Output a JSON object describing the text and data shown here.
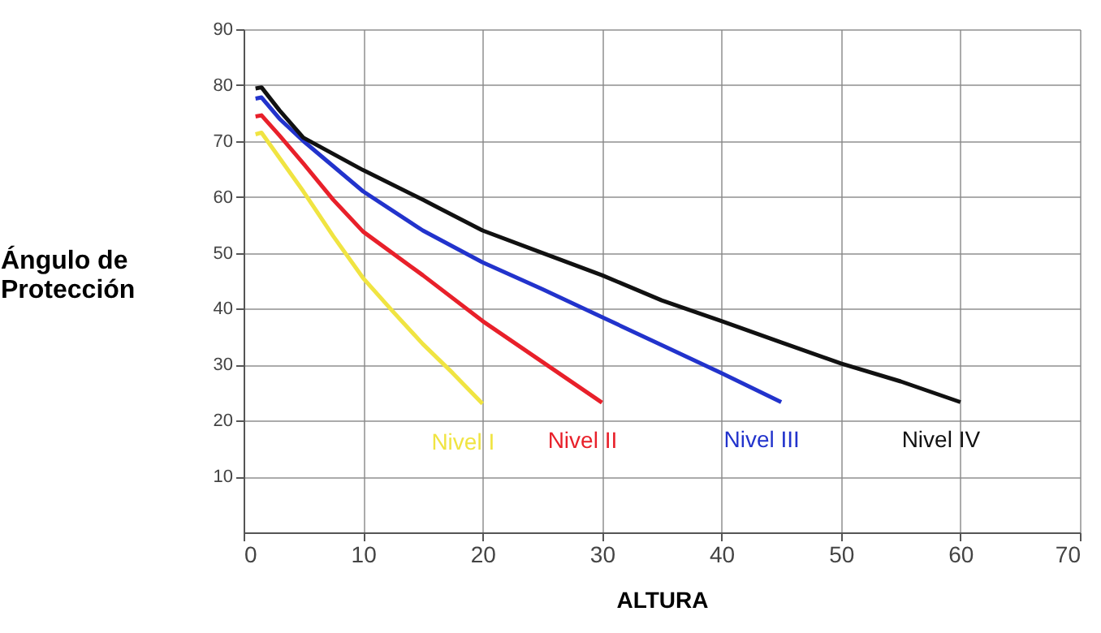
{
  "chart_data": {
    "type": "line",
    "xlabel": "ALTURA",
    "ylabel": "Ángulo de\nProtección",
    "xlim": [
      0,
      70
    ],
    "xticks": [
      0,
      10,
      20,
      30,
      40,
      50,
      60,
      70
    ],
    "ylim": [
      0,
      90
    ],
    "yticks": [
      10,
      20,
      30,
      40,
      50,
      60,
      70,
      80,
      90
    ],
    "grid": true,
    "marker": "none",
    "line_style": "solid",
    "series": [
      {
        "name": "Nivel I",
        "color": "#f0e442",
        "x": [
          1,
          1.5,
          3,
          5,
          7.5,
          10,
          12.5,
          15,
          17.5,
          20
        ],
        "values": [
          71.2,
          71.5,
          67,
          61,
          53,
          45.5,
          39.5,
          33.7,
          28.5,
          23
        ]
      },
      {
        "name": "Nivel II",
        "color": "#e8202a",
        "x": [
          1,
          1.5,
          3,
          5,
          7.5,
          10,
          15,
          20,
          25,
          30
        ],
        "values": [
          74.4,
          74.6,
          71,
          66,
          59.5,
          53.8,
          46,
          37.8,
          30.5,
          23.2
        ]
      },
      {
        "name": "Nivel  III",
        "color": "#2233cc",
        "x": [
          1,
          1.5,
          3,
          5,
          10,
          15,
          20,
          25,
          30,
          35,
          40,
          45
        ],
        "values": [
          77.6,
          77.8,
          74,
          70,
          61,
          54,
          48.3,
          43.5,
          38.5,
          33.5,
          28.5,
          23.3
        ]
      },
      {
        "name": "Nivel IV",
        "color": "#111111",
        "x": [
          1,
          1.5,
          3,
          5,
          10,
          15,
          20,
          25,
          30,
          35,
          40,
          45,
          50,
          55,
          60
        ],
        "values": [
          79.4,
          79.6,
          75.5,
          70.6,
          64.8,
          59.5,
          54,
          50,
          46,
          41.5,
          37.8,
          34,
          30.2,
          27,
          23.3
        ]
      }
    ]
  }
}
